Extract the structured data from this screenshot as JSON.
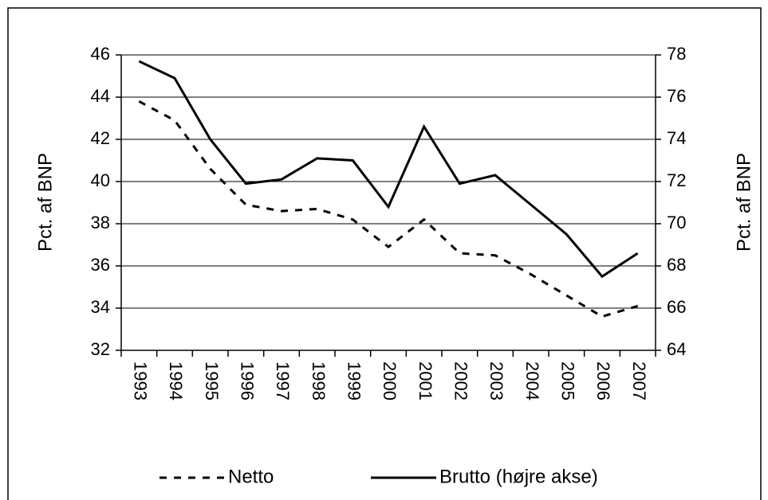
{
  "chart_data": {
    "type": "line",
    "categories": [
      "1993",
      "1994",
      "1995",
      "1996",
      "1997",
      "1998",
      "1999",
      "2000",
      "2001",
      "2002",
      "2003",
      "2004",
      "2005",
      "2006",
      "2007"
    ],
    "ylabel": "Pct. af BNP",
    "y2label": "Pct. af BNP",
    "ylim": [
      32,
      46
    ],
    "yticks": [
      32,
      34,
      36,
      38,
      40,
      42,
      44,
      46
    ],
    "y2lim": [
      64,
      78
    ],
    "y2ticks": [
      64,
      66,
      68,
      70,
      72,
      74,
      76,
      78
    ],
    "grid": true,
    "legend": "bottom",
    "series": [
      {
        "name": "Netto",
        "color": "#000000",
        "line_style": "dashed",
        "values": [
          43.8,
          42.9,
          40.6,
          38.9,
          38.6,
          38.7,
          38.2,
          36.9,
          38.2,
          36.6,
          36.5,
          35.6,
          34.6,
          33.6,
          34.1
        ]
      },
      {
        "name": "Brutto (højre akse)",
        "color": "#000000",
        "line_style": "solid",
        "axis": "y2",
        "values": [
          77.7,
          76.9,
          74.0,
          71.9,
          72.1,
          73.1,
          73.0,
          70.8,
          74.6,
          71.9,
          72.3,
          70.9,
          69.5,
          67.5,
          68.6
        ]
      }
    ]
  }
}
